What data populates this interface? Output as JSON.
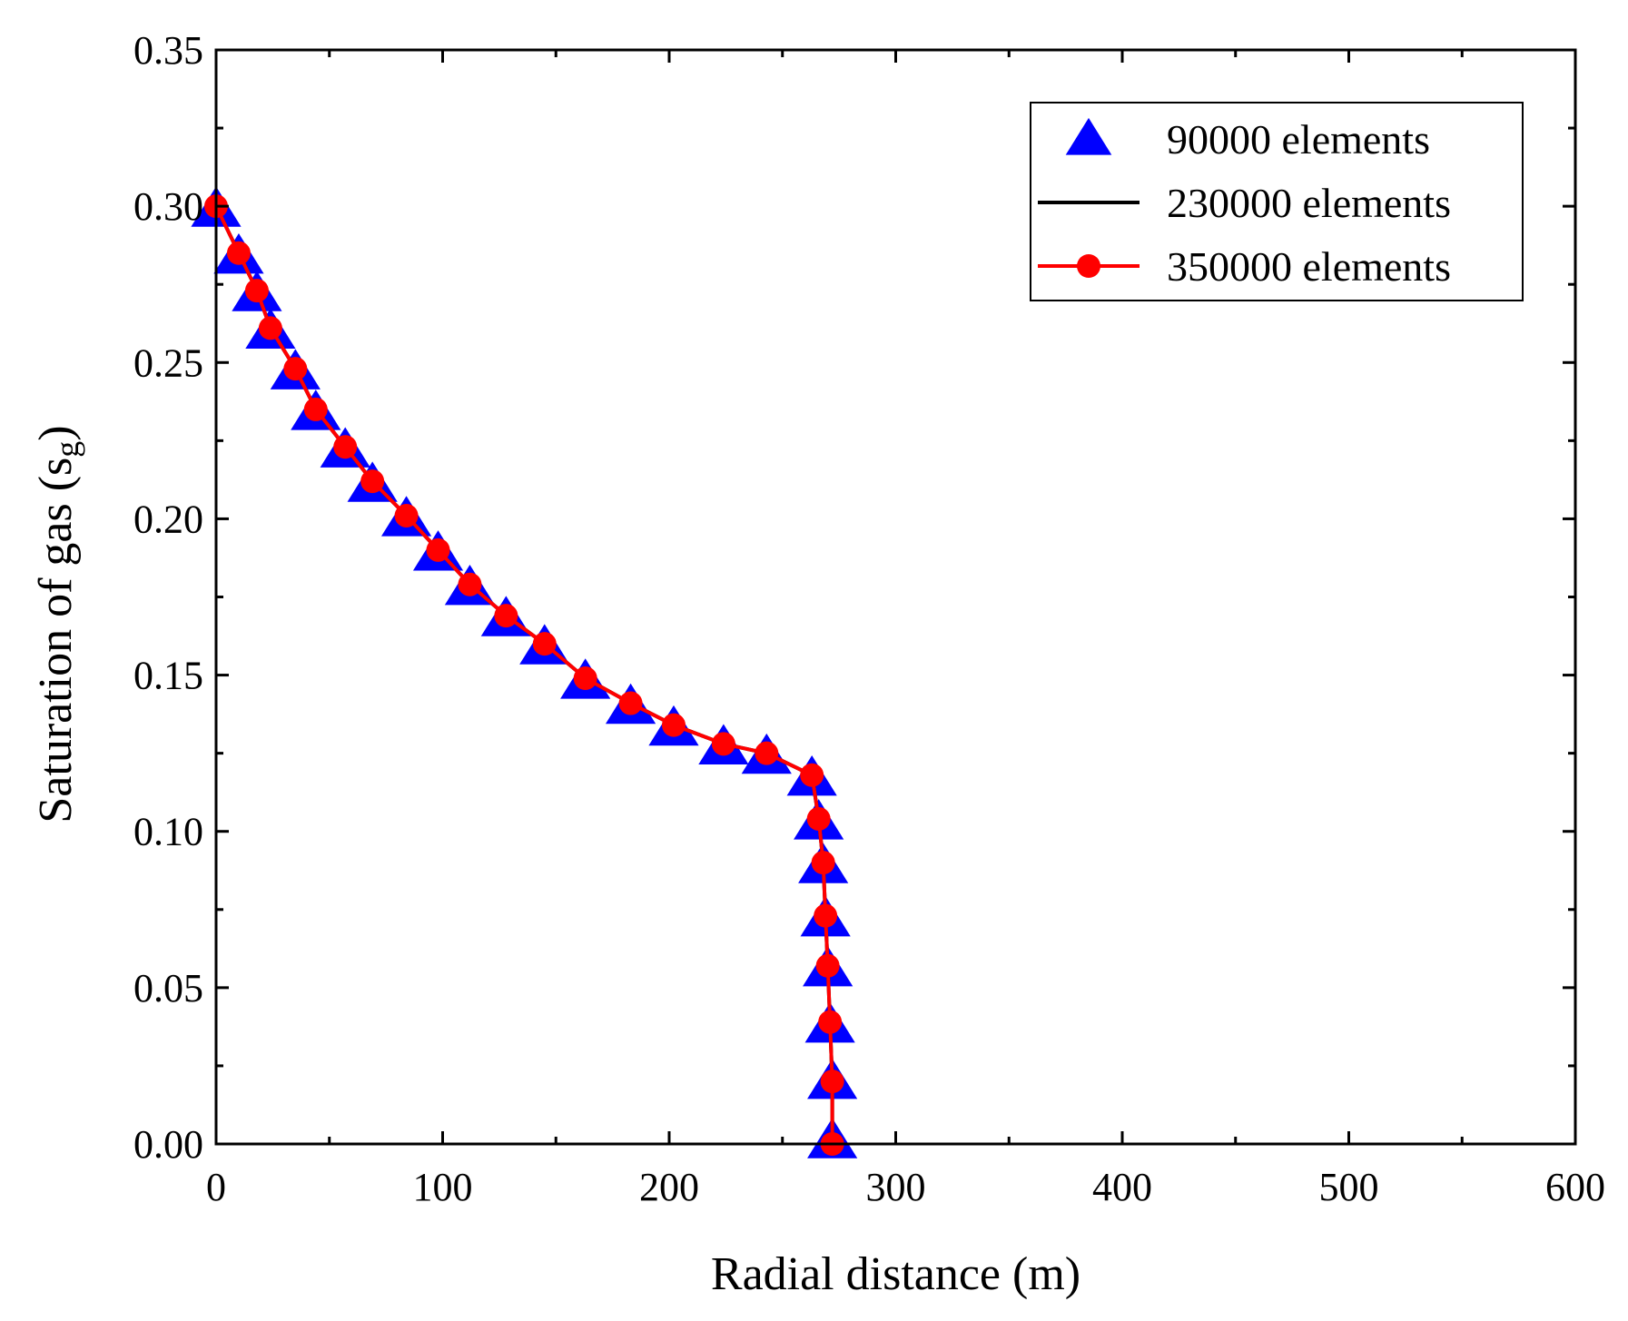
{
  "chart_data": {
    "type": "line",
    "title": "",
    "xlabel": "Radial distance (m)",
    "ylabel_main": "Saturation of gas (s",
    "ylabel_sub": "g",
    "ylabel_close": ")",
    "xlim": [
      0,
      600
    ],
    "ylim": [
      0,
      0.35
    ],
    "xticks": [
      "0",
      "100",
      "200",
      "300",
      "400",
      "500",
      "600"
    ],
    "yticks": [
      "0.00",
      "0.05",
      "0.10",
      "0.15",
      "0.20",
      "0.25",
      "0.30",
      "0.35"
    ],
    "grid": false,
    "legend_position": "top-right",
    "series": [
      {
        "name": "90000 elements",
        "color": "#0000ff",
        "marker": "triangle",
        "line": false,
        "x": [
          0,
          10,
          18,
          24,
          35,
          44,
          57,
          69,
          84,
          98,
          112,
          128,
          145,
          163,
          183,
          202,
          224,
          243,
          263,
          266,
          268,
          269,
          270,
          271,
          272,
          272
        ],
        "y": [
          0.299,
          0.284,
          0.272,
          0.26,
          0.247,
          0.234,
          0.222,
          0.211,
          0.2,
          0.189,
          0.178,
          0.168,
          0.159,
          0.148,
          0.14,
          0.133,
          0.127,
          0.124,
          0.117,
          0.103,
          0.089,
          0.072,
          0.056,
          0.038,
          0.02,
          0.001
        ]
      },
      {
        "name": "230000 elements",
        "color": "#000000",
        "marker": "none",
        "line": true,
        "x": [
          0,
          10,
          18,
          24,
          35,
          44,
          57,
          69,
          84,
          98,
          112,
          128,
          145,
          163,
          183,
          202,
          224,
          243,
          263,
          266,
          268,
          269,
          270,
          271,
          272,
          272
        ],
        "y": [
          0.3,
          0.285,
          0.273,
          0.261,
          0.248,
          0.235,
          0.223,
          0.212,
          0.201,
          0.19,
          0.179,
          0.169,
          0.16,
          0.149,
          0.141,
          0.134,
          0.128,
          0.125,
          0.118,
          0.104,
          0.09,
          0.073,
          0.057,
          0.039,
          0.02,
          0.0
        ]
      },
      {
        "name": "350000 elements",
        "color": "#ff0000",
        "marker": "circle",
        "line": true,
        "x": [
          0,
          10,
          18,
          24,
          35,
          44,
          57,
          69,
          84,
          98,
          112,
          128,
          145,
          163,
          183,
          202,
          224,
          243,
          263,
          266,
          268,
          269,
          270,
          271,
          272,
          272
        ],
        "y": [
          0.3,
          0.285,
          0.273,
          0.261,
          0.248,
          0.235,
          0.223,
          0.212,
          0.201,
          0.19,
          0.179,
          0.169,
          0.16,
          0.149,
          0.141,
          0.134,
          0.128,
          0.125,
          0.118,
          0.104,
          0.09,
          0.073,
          0.057,
          0.039,
          0.02,
          0.0
        ]
      }
    ]
  }
}
